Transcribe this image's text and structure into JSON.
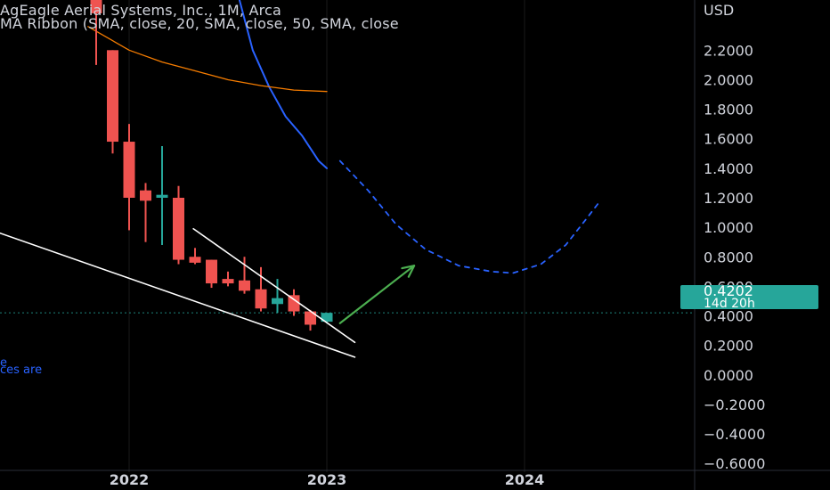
{
  "header": {
    "title": "AgEagle Aerial Systems, Inc., 1M, Arca",
    "indicator": "MA Ribbon (SMA, close, 20, SMA, close, 50, SMA, close"
  },
  "notes": [
    "e",
    "ces are"
  ],
  "price_badge": {
    "price": "0.4202",
    "countdown": "14d 20h",
    "color": "#26a69a"
  },
  "colors": {
    "background": "#000000",
    "up": "#26a69a",
    "down": "#ef5350",
    "ma_fast": "#2962ff",
    "ma_slow": "#f57c00",
    "projection": "#2962ff",
    "arrow": "#4caf50",
    "pattern_lines": "#ffffff",
    "price_line": "#26a69a"
  },
  "chart_data": {
    "type": "candlestick",
    "title": "AgEagle Aerial Systems, Inc., 1M, Arca",
    "currency": "USD",
    "y_ticks": [
      "2.2000",
      "2.0000",
      "1.8000",
      "1.6000",
      "1.4000",
      "1.2000",
      "1.0000",
      "0.8000",
      "0.6000",
      "0.4000",
      "0.2000",
      "0.0000",
      "−0.2000",
      "−0.4000",
      "−0.6000"
    ],
    "y_tick_values": [
      2.2,
      2.0,
      1.8,
      1.6,
      1.4,
      1.2,
      1.0,
      0.8,
      0.6,
      0.4,
      0.2,
      0.0,
      -0.2,
      -0.4,
      -0.6
    ],
    "ylim": [
      -0.78,
      2.54
    ],
    "x_ticks": [
      {
        "label": "2022",
        "month": 12
      },
      {
        "label": "2023",
        "month": 24
      },
      {
        "label": "2024",
        "month": 36
      }
    ],
    "xlim": [
      0,
      41.8
    ],
    "last_price": 0.4202,
    "grid": false,
    "candles": [
      {
        "m": 10,
        "o": 2.54,
        "h": 2.54,
        "l": 2.1,
        "c": 2.45
      },
      {
        "m": 11,
        "o": 2.2,
        "h": 2.2,
        "l": 1.5,
        "c": 1.58
      },
      {
        "m": 12,
        "o": 1.58,
        "h": 1.7,
        "l": 0.98,
        "c": 1.2
      },
      {
        "m": 13,
        "o": 1.25,
        "h": 1.3,
        "l": 0.9,
        "c": 1.18
      },
      {
        "m": 14,
        "o": 1.2,
        "h": 1.55,
        "l": 0.88,
        "c": 1.22
      },
      {
        "m": 15,
        "o": 1.2,
        "h": 1.28,
        "l": 0.75,
        "c": 0.78
      },
      {
        "m": 16,
        "o": 0.8,
        "h": 0.86,
        "l": 0.75,
        "c": 0.76
      },
      {
        "m": 17,
        "o": 0.78,
        "h": 0.78,
        "l": 0.59,
        "c": 0.62
      },
      {
        "m": 18,
        "o": 0.65,
        "h": 0.7,
        "l": 0.6,
        "c": 0.62
      },
      {
        "m": 19,
        "o": 0.64,
        "h": 0.8,
        "l": 0.55,
        "c": 0.57
      },
      {
        "m": 20,
        "o": 0.58,
        "h": 0.73,
        "l": 0.43,
        "c": 0.45
      },
      {
        "m": 21,
        "o": 0.48,
        "h": 0.65,
        "l": 0.42,
        "c": 0.52
      },
      {
        "m": 22,
        "o": 0.54,
        "h": 0.58,
        "l": 0.4,
        "c": 0.43
      },
      {
        "m": 23,
        "o": 0.43,
        "h": 0.44,
        "l": 0.3,
        "c": 0.34
      },
      {
        "m": 24,
        "o": 0.36,
        "h": 0.42,
        "l": 0.35,
        "c": 0.4202
      }
    ],
    "series": [
      {
        "values": [
          [
            18.7,
            2.54
          ],
          [
            19.5,
            2.2
          ],
          [
            20.5,
            1.95
          ],
          [
            21.5,
            1.75
          ],
          [
            22.5,
            1.62
          ],
          [
            23.5,
            1.45
          ],
          [
            24,
            1.4
          ]
        ]
      },
      {
        "values": [
          [
            9.5,
            2.36
          ],
          [
            12,
            2.2
          ],
          [
            14,
            2.12
          ],
          [
            16,
            2.06
          ],
          [
            18,
            2.0
          ],
          [
            20,
            1.96
          ],
          [
            22,
            1.93
          ],
          [
            24,
            1.92
          ]
        ]
      },
      {
        "values": [
          [
            24.8,
            1.45
          ],
          [
            26.5,
            1.25
          ],
          [
            28.2,
            1.02
          ],
          [
            30,
            0.85
          ],
          [
            32,
            0.74
          ],
          [
            34,
            0.7
          ],
          [
            35.3,
            0.69
          ],
          [
            37,
            0.75
          ],
          [
            38.5,
            0.88
          ],
          [
            39.7,
            1.05
          ],
          [
            40.6,
            1.18
          ]
        ]
      }
    ],
    "annotations": {
      "wedge_lower": [
        [
          3.4,
          0.99
        ],
        [
          25.7,
          0.12
        ]
      ],
      "wedge_upper": [
        [
          15.9,
          0.99
        ],
        [
          25.7,
          0.22
        ]
      ],
      "arrow": [
        [
          24.8,
          0.35
        ],
        [
          29.3,
          0.74
        ]
      ]
    }
  }
}
